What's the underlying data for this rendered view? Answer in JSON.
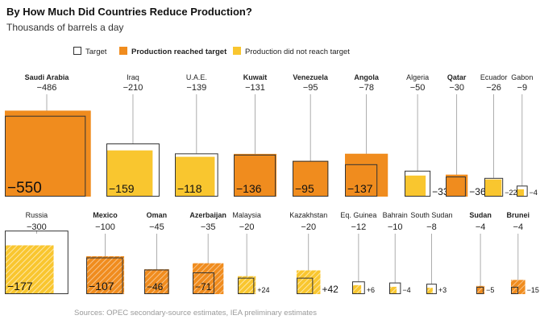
{
  "title": "By How Much Did Countries Reduce Production?",
  "subtitle": "Thousands of barrels a day",
  "legend": {
    "target": "Target",
    "reached": "Production reached target",
    "not_reached": "Production did not reach target"
  },
  "source": "Sources: OPEC secondary-source estimates, IEA preliminary estimates",
  "colors": {
    "reached": "#f08c1e",
    "not_reached": "#f9c62f",
    "target_outline": "#333333",
    "leader": "#999999",
    "source_text": "#9a9a9a"
  },
  "chart_data": {
    "type": "area",
    "encoding": "square area proportional to production cut",
    "x": [
      "Saudi Arabia",
      "Iraq",
      "U.A.E.",
      "Kuwait",
      "Venezuela",
      "Angola",
      "Algeria",
      "Qatar",
      "Ecuador",
      "Gabon",
      "Russia",
      "Mexico",
      "Oman",
      "Azerbaijan",
      "Malaysia",
      "Kazakhstan",
      "Eq. Guinea",
      "Bahrain",
      "South Sudan",
      "Sudan",
      "Brunei"
    ],
    "series": [
      {
        "name": "Target",
        "values": [
          -486,
          -210,
          -139,
          -131,
          -95,
          -78,
          -50,
          -30,
          -26,
          -9,
          -300,
          -100,
          -45,
          -35,
          -20,
          -20,
          -12,
          -10,
          -8,
          -4,
          -4
        ]
      },
      {
        "name": "Production",
        "values": [
          -550,
          -159,
          -118,
          -136,
          -95,
          -137,
          -33,
          -36,
          -22,
          -4,
          -177,
          -107,
          -46,
          -71,
          24,
          42,
          6,
          -4,
          3,
          -5,
          -15
        ]
      }
    ],
    "countries": [
      {
        "name": "Saudi Arabia",
        "target": "−486",
        "actual": "−550",
        "status": "reached",
        "hatched": false,
        "bold": true
      },
      {
        "name": "Iraq",
        "target": "−210",
        "actual": "−159",
        "status": "not_reached",
        "hatched": false,
        "bold": false
      },
      {
        "name": "U.A.E.",
        "target": "−139",
        "actual": "−118",
        "status": "not_reached",
        "hatched": false,
        "bold": false
      },
      {
        "name": "Kuwait",
        "target": "−131",
        "actual": "−136",
        "status": "reached",
        "hatched": false,
        "bold": true
      },
      {
        "name": "Venezuela",
        "target": "−95",
        "actual": "−95",
        "status": "reached",
        "hatched": false,
        "bold": true
      },
      {
        "name": "Angola",
        "target": "−78",
        "actual": "−137",
        "status": "reached",
        "hatched": false,
        "bold": true
      },
      {
        "name": "Algeria",
        "target": "−50",
        "actual": "−33",
        "status": "not_reached",
        "hatched": false,
        "bold": false
      },
      {
        "name": "Qatar",
        "target": "−30",
        "actual": "−36",
        "status": "reached",
        "hatched": false,
        "bold": true
      },
      {
        "name": "Ecuador",
        "target": "−26",
        "actual": "−22",
        "status": "not_reached",
        "hatched": false,
        "bold": false
      },
      {
        "name": "Gabon",
        "target": "−9",
        "actual": "−4",
        "status": "not_reached",
        "hatched": false,
        "bold": false
      },
      {
        "name": "Russia",
        "target": "−300",
        "actual": "−177",
        "status": "not_reached",
        "hatched": true,
        "bold": false
      },
      {
        "name": "Mexico",
        "target": "−100",
        "actual": "−107",
        "status": "reached",
        "hatched": true,
        "bold": true
      },
      {
        "name": "Oman",
        "target": "−45",
        "actual": "−46",
        "status": "reached",
        "hatched": true,
        "bold": true
      },
      {
        "name": "Azerbaijan",
        "target": "−35",
        "actual": "−71",
        "status": "reached",
        "hatched": true,
        "bold": true
      },
      {
        "name": "Malaysia",
        "target": "−20",
        "actual": "+24",
        "status": "not_reached",
        "hatched": true,
        "bold": false
      },
      {
        "name": "Kazakhstan",
        "target": "−20",
        "actual": "+42",
        "status": "not_reached",
        "hatched": true,
        "bold": false
      },
      {
        "name": "Eq. Guinea",
        "target": "−12",
        "actual": "+6",
        "status": "not_reached",
        "hatched": true,
        "bold": false
      },
      {
        "name": "Bahrain",
        "target": "−10",
        "actual": "−4",
        "status": "not_reached",
        "hatched": true,
        "bold": false
      },
      {
        "name": "South Sudan",
        "target": "−8",
        "actual": "+3",
        "status": "not_reached",
        "hatched": true,
        "bold": false
      },
      {
        "name": "Sudan",
        "target": "−4",
        "actual": "−5",
        "status": "reached",
        "hatched": true,
        "bold": true
      },
      {
        "name": "Brunei",
        "target": "−4",
        "actual": "−15",
        "status": "reached",
        "hatched": true,
        "bold": true
      }
    ]
  }
}
